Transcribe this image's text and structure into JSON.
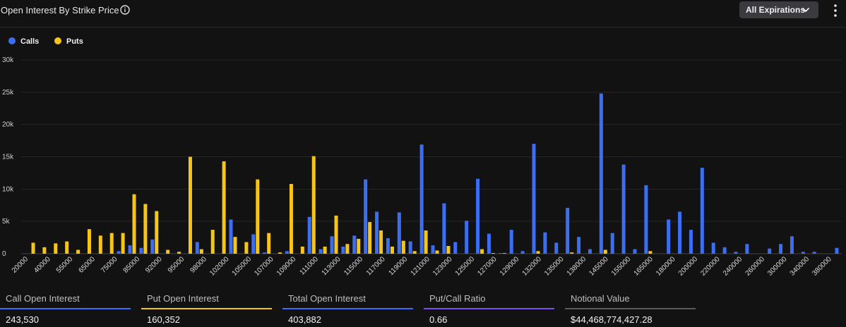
{
  "header": {
    "title": "Open Interest By Strike Price",
    "expirations_label": "All Expirations"
  },
  "colors": {
    "calls": "#3b6ef2",
    "puts": "#f5c518",
    "total": "#3b6ef2",
    "ratio": "#7b4fe8",
    "notional": "#5a5a5a"
  },
  "chart_data": {
    "type": "bar",
    "legend": [
      "Calls",
      "Puts"
    ],
    "ylim": [
      0,
      30000
    ],
    "yticks": [
      "0",
      "5k",
      "10k",
      "15k",
      "20k",
      "25k",
      "30k"
    ],
    "tick_labels": [
      "20000",
      "40000",
      "55000",
      "65000",
      "75000",
      "85000",
      "92000",
      "95000",
      "98000",
      "102000",
      "105000",
      "107000",
      "109000",
      "111000",
      "113000",
      "115000",
      "117000",
      "119000",
      "121000",
      "123000",
      "125000",
      "127000",
      "129000",
      "132000",
      "135000",
      "138000",
      "145000",
      "155000",
      "165000",
      "180000",
      "200000",
      "220000",
      "240000",
      "260000",
      "300000",
      "340000",
      "380000"
    ],
    "series": [
      {
        "name": "Calls",
        "values": [
          0,
          0,
          0,
          0,
          0,
          0,
          0,
          0,
          400,
          1300,
          900,
          2200,
          0,
          0,
          0,
          1800,
          0,
          0,
          5300,
          0,
          3000,
          200,
          0,
          400,
          0,
          5700,
          700,
          2700,
          1100,
          2800,
          11500,
          6500,
          2400,
          6400,
          1900,
          16900,
          1300,
          7800,
          1800,
          5100,
          11600,
          3100,
          100,
          3700,
          400,
          17000,
          3300,
          1700,
          7100,
          2600,
          700,
          24800,
          3200,
          13800,
          700,
          10600,
          0,
          5300,
          6500,
          3700,
          13300,
          1700,
          1000,
          300,
          1500,
          0,
          800,
          1500,
          2700,
          300,
          300,
          0,
          900
        ],
        "key": "calls"
      },
      {
        "name": "Puts",
        "values": [
          1700,
          1000,
          1600,
          1900,
          600,
          3800,
          2800,
          3200,
          3200,
          9200,
          7700,
          6600,
          600,
          300,
          15000,
          700,
          3700,
          14300,
          2600,
          1800,
          11500,
          3200,
          200,
          10800,
          1100,
          15100,
          1100,
          5900,
          1500,
          2300,
          4900,
          3600,
          1100,
          2000,
          400,
          3600,
          500,
          1200,
          0,
          0,
          700,
          100,
          100,
          0,
          0,
          400,
          0,
          0,
          200,
          0,
          0,
          600,
          0,
          0,
          0,
          400,
          0,
          0,
          0,
          0,
          0,
          0,
          0,
          0,
          0,
          0,
          0,
          0,
          0,
          0,
          0,
          0,
          0
        ],
        "key": "puts"
      }
    ]
  },
  "stats": [
    {
      "label": "Call Open Interest",
      "value": "243,530",
      "color_key": "calls"
    },
    {
      "label": "Put Open Interest",
      "value": "160,352",
      "color_key": "puts"
    },
    {
      "label": "Total Open Interest",
      "value": "403,882",
      "color_key": "total"
    },
    {
      "label": "Put/Call Ratio",
      "value": "0.66",
      "color_key": "ratio"
    },
    {
      "label": "Notional Value",
      "value": "$44,468,774,427.28",
      "color_key": "notional"
    }
  ]
}
